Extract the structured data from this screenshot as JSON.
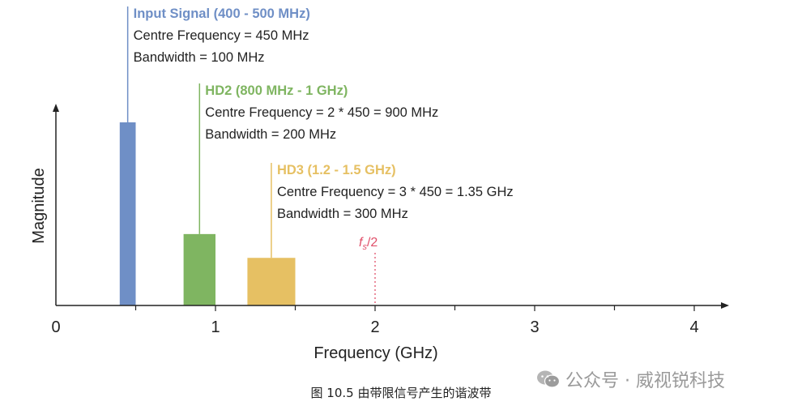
{
  "chart_data": {
    "type": "bar",
    "xlabel": "Frequency (GHz)",
    "ylabel": "Magnitude",
    "xlim": [
      0,
      4.2
    ],
    "ylim": [
      0,
      1
    ],
    "x_ticks": [
      "0",
      "1",
      "2",
      "3",
      "4"
    ],
    "bars": [
      {
        "x_start": 0.4,
        "x_end": 0.5,
        "value": 1.0,
        "color": "#6f8fc6"
      },
      {
        "x_start": 0.8,
        "x_end": 1.0,
        "value": 0.39,
        "color": "#7fb561"
      },
      {
        "x_start": 1.2,
        "x_end": 1.5,
        "value": 0.26,
        "color": "#e6c063"
      }
    ],
    "annotations": [
      {
        "x": 0.45,
        "color": "#6f8fc6",
        "title": "Input Signal (400 - 500 MHz)",
        "lines": [
          "Centre Frequency = 450 MHz",
          "Bandwidth = 100 MHz"
        ]
      },
      {
        "x": 0.9,
        "color": "#7fb561",
        "title": "HD2 (800 MHz - 1 GHz)",
        "lines": [
          "Centre Frequency = 2 * 450 = 900 MHz",
          "Bandwidth = 200 MHz"
        ]
      },
      {
        "x": 1.35,
        "color": "#e6c063",
        "title": "HD3 (1.2 - 1.5 GHz)",
        "lines": [
          "Centre Frequency = 3 * 450 = 1.35 GHz",
          "Bandwidth = 300 MHz"
        ]
      }
    ],
    "marker": {
      "x": 2.0,
      "label_main": "f",
      "label_sub": "s",
      "label_rest": "/2",
      "color": "#e0506a"
    }
  },
  "caption": "图 10.5 由带限信号产生的谐波带",
  "watermark": {
    "text": "公众号 · 威视锐科技",
    "icon": "wechat-icon"
  }
}
